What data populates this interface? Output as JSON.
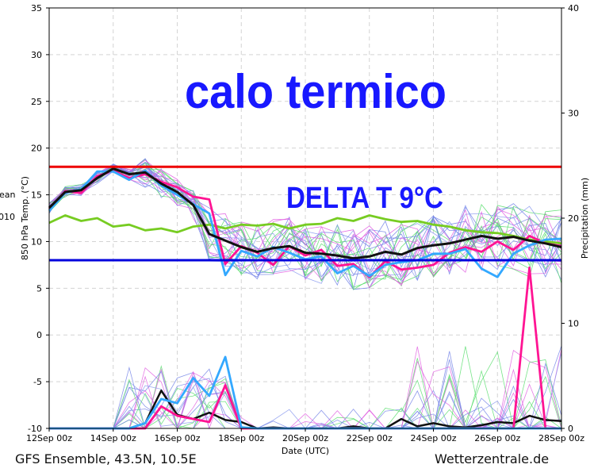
{
  "chart_data": {
    "type": "line",
    "xlabel": "Date (UTC)",
    "ylabel": "850 hPa Temp. (°C)",
    "y2label": "Precipitation (mm)",
    "xticks": [
      "12Sep 00z",
      "14Sep 00z",
      "16Sep 00z",
      "18Sep 00z",
      "20Sep 00z",
      "22Sep 00z",
      "24Sep 00z",
      "26Sep 00z",
      "28Sep 00z"
    ],
    "xlim": [
      0,
      16
    ],
    "ylim": [
      -10,
      35
    ],
    "yticks": [
      -10,
      -5,
      0,
      5,
      10,
      15,
      20,
      25,
      30,
      35
    ],
    "y2lim": [
      0,
      40
    ],
    "y2ticks": [
      0,
      10,
      20,
      30,
      40
    ],
    "grid": true,
    "clipped_legend": [
      "ean",
      "010"
    ],
    "annotations": {
      "main": "calo termico",
      "delta": "DELTA T 9°C"
    },
    "hlines": [
      {
        "y": 18,
        "color": "#ee0000"
      },
      {
        "y": 8,
        "color": "#0000dd"
      }
    ],
    "temp_x": [
      0,
      0.5,
      1,
      1.5,
      2,
      2.5,
      3,
      3.5,
      4,
      4.5,
      5,
      5.5,
      6,
      6.5,
      7,
      7.5,
      8,
      8.5,
      9,
      9.5,
      10,
      10.5,
      11,
      11.5,
      12,
      12.5,
      13,
      13.5,
      14,
      14.5,
      15,
      15.5,
      16
    ],
    "series": [
      {
        "role": "climate",
        "color": "#77cc22",
        "values": [
          12,
          12.8,
          12.2,
          12.5,
          11.6,
          11.8,
          11.2,
          11.4,
          11,
          11.6,
          11.8,
          11.4,
          11.8,
          11.7,
          11.9,
          11.4,
          11.8,
          11.9,
          12.5,
          12.2,
          12.8,
          12.4,
          12.1,
          12.2,
          11.8,
          11.6,
          11.2,
          11,
          10.9,
          10.6,
          10.2,
          10,
          9.8
        ]
      },
      {
        "role": "control",
        "color": "#ff1493",
        "values": [
          13.5,
          15.4,
          15.2,
          17,
          17.6,
          16.8,
          17.2,
          16.4,
          15.8,
          14.8,
          14.5,
          7.6,
          9.5,
          8.8,
          7.5,
          9.5,
          8.5,
          9.1,
          7.4,
          7.6,
          6.2,
          7.9,
          7,
          7.2,
          7.5,
          8.8,
          9.4,
          8.9,
          10,
          9.1,
          10.6,
          9.8,
          9.5
        ]
      },
      {
        "role": "operational",
        "color": "#33a8ff",
        "values": [
          13.3,
          15.2,
          15.6,
          17.5,
          17.5,
          16.6,
          17.6,
          16,
          15,
          14,
          13,
          6.4,
          9,
          8.4,
          9.4,
          8.8,
          8.1,
          8.4,
          6.6,
          7.4,
          6.3,
          7.5,
          7.8,
          8,
          8.7,
          8.7,
          9.2,
          7.1,
          6.2,
          8.7,
          9.6,
          10.2,
          10.3
        ]
      },
      {
        "role": "mean",
        "color": "#111111",
        "values": [
          13.6,
          15.3,
          15.5,
          16.8,
          17.8,
          17.2,
          17.4,
          16.2,
          15.3,
          13.9,
          10.8,
          10.1,
          9.4,
          8.9,
          9.3,
          9.5,
          8.8,
          8.7,
          8.5,
          8.2,
          8.4,
          8.9,
          8.6,
          9.3,
          9.6,
          9.8,
          10.2,
          10.6,
          10.3,
          10.5,
          10.1,
          9.8,
          9.4
        ]
      }
    ],
    "precip_x": [
      0,
      0.5,
      1,
      1.5,
      2,
      2.5,
      3,
      3.5,
      4,
      4.5,
      5,
      5.5,
      6,
      6.5,
      7,
      7.5,
      8,
      8.5,
      9,
      9.5,
      10,
      10.5,
      11,
      11.5,
      12,
      12.5,
      13,
      13.5,
      14,
      14.5,
      15,
      15.5,
      16
    ],
    "precip_series": [
      {
        "role": "mean",
        "color": "#111111",
        "values": [
          0,
          0,
          0,
          0,
          0,
          0,
          0.5,
          3.6,
          1.3,
          0.9,
          1.5,
          0.8,
          0.6,
          0,
          0.1,
          0,
          0,
          0,
          0,
          0.2,
          0,
          0,
          0.9,
          0.2,
          0.5,
          0.2,
          0.1,
          0.3,
          0.6,
          0.5,
          1.2,
          0.8,
          0.7
        ]
      },
      {
        "role": "control",
        "color": "#ff1493",
        "values": [
          0,
          0,
          0,
          0,
          0,
          0,
          0,
          2.1,
          1.2,
          0.9,
          0.6,
          4.1,
          0,
          0,
          0,
          0,
          0,
          0,
          0,
          0,
          0,
          0,
          0,
          0,
          0,
          0,
          0,
          0,
          0,
          0,
          15.3,
          0,
          0
        ]
      },
      {
        "role": "operational",
        "color": "#33a8ff",
        "values": [
          0,
          0,
          0,
          0,
          0,
          0,
          0.5,
          2.8,
          2.4,
          4.8,
          3.1,
          6.8,
          0.1,
          0,
          0,
          0,
          0,
          0,
          0,
          0,
          0,
          0,
          0,
          0,
          0,
          0,
          0,
          0,
          0,
          0,
          0,
          0,
          0
        ]
      }
    ]
  },
  "footer": {
    "left": "GFS Ensemble, 43.5N, 10.5E",
    "right": "Wetterzentrale.de"
  }
}
